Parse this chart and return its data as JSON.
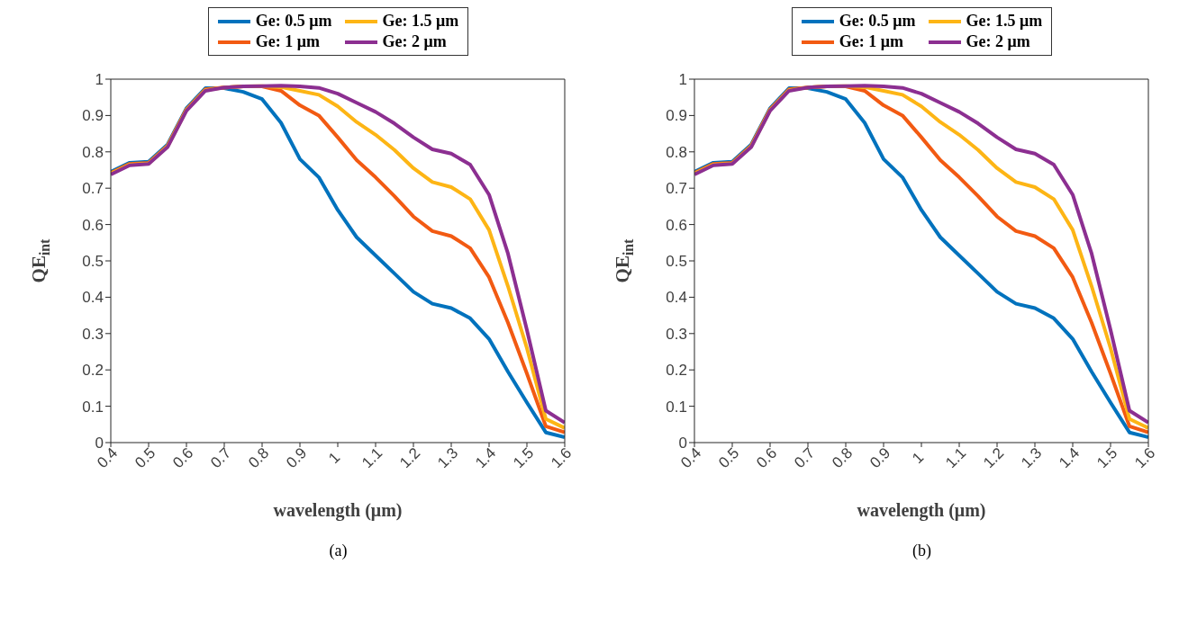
{
  "chart_data": [
    {
      "type": "line",
      "xlabel": "wavelength (μm)",
      "ylabel": "QE$_{int}$",
      "xlim": [
        0.4,
        1.6
      ],
      "ylim": [
        0,
        1
      ],
      "xticks": [
        0.4,
        0.5,
        0.6,
        0.7,
        0.8,
        0.9,
        1,
        1.1,
        1.2,
        1.3,
        1.4,
        1.5,
        1.6
      ],
      "yticks": [
        0,
        0.1,
        0.2,
        0.3,
        0.4,
        0.5,
        0.6,
        0.7,
        0.8,
        0.9,
        1
      ],
      "legend": "top",
      "marker": "none",
      "line_style": "solid",
      "annotations": [
        "(a)"
      ],
      "x": [
        0.4,
        0.45,
        0.5,
        0.55,
        0.6,
        0.65,
        0.7,
        0.75,
        0.8,
        0.85,
        0.9,
        0.95,
        1,
        1.05,
        1.1,
        1.15,
        1.2,
        1.25,
        1.3,
        1.35,
        1.4,
        1.45,
        1.5,
        1.55,
        1.6
      ],
      "series": [
        {
          "name": "Ge: 0.5 μm",
          "color": "#0072bd",
          "values": [
            0.745,
            0.77,
            0.773,
            0.82,
            0.92,
            0.975,
            0.975,
            0.965,
            0.945,
            0.88,
            0.78,
            0.73,
            0.64,
            0.565,
            0.515,
            0.465,
            0.415,
            0.382,
            0.37,
            0.342,
            0.285,
            0.195,
            0.11,
            0.028,
            0.015
          ]
        },
        {
          "name": "Ge: 1 μm",
          "color": "#f25a12",
          "values": [
            0.742,
            0.767,
            0.77,
            0.817,
            0.917,
            0.972,
            0.977,
            0.98,
            0.98,
            0.968,
            0.928,
            0.9,
            0.84,
            0.777,
            0.73,
            0.678,
            0.622,
            0.582,
            0.568,
            0.535,
            0.455,
            0.33,
            0.19,
            0.045,
            0.028
          ]
        },
        {
          "name": "Ge: 1.5 μm",
          "color": "#fdb515",
          "values": [
            0.74,
            0.765,
            0.768,
            0.815,
            0.915,
            0.97,
            0.977,
            0.98,
            0.981,
            0.978,
            0.968,
            0.957,
            0.925,
            0.882,
            0.847,
            0.805,
            0.755,
            0.717,
            0.703,
            0.67,
            0.585,
            0.43,
            0.26,
            0.065,
            0.04
          ]
        },
        {
          "name": "Ge: 2 μm",
          "color": "#8c2f91",
          "values": [
            0.738,
            0.763,
            0.767,
            0.813,
            0.913,
            0.968,
            0.977,
            0.98,
            0.981,
            0.982,
            0.98,
            0.976,
            0.96,
            0.935,
            0.91,
            0.878,
            0.84,
            0.807,
            0.795,
            0.765,
            0.682,
            0.52,
            0.31,
            0.088,
            0.055
          ]
        }
      ]
    },
    {
      "type": "line",
      "xlabel": "wavelength (μm)",
      "ylabel": "QE$_{int}$",
      "xlim": [
        0.4,
        1.6
      ],
      "ylim": [
        0,
        1
      ],
      "xticks": [
        0.4,
        0.5,
        0.6,
        0.7,
        0.8,
        0.9,
        1,
        1.1,
        1.2,
        1.3,
        1.4,
        1.5,
        1.6
      ],
      "yticks": [
        0,
        0.1,
        0.2,
        0.3,
        0.4,
        0.5,
        0.6,
        0.7,
        0.8,
        0.9,
        1
      ],
      "legend": "top",
      "marker": "none",
      "line_style": "solid",
      "annotations": [
        "(b)"
      ],
      "x": [
        0.4,
        0.45,
        0.5,
        0.55,
        0.6,
        0.65,
        0.7,
        0.75,
        0.8,
        0.85,
        0.9,
        0.95,
        1,
        1.05,
        1.1,
        1.15,
        1.2,
        1.25,
        1.3,
        1.35,
        1.4,
        1.45,
        1.5,
        1.55,
        1.6
      ],
      "series": [
        {
          "name": "Ge: 0.5 μm",
          "color": "#0072bd",
          "values": [
            0.745,
            0.77,
            0.773,
            0.82,
            0.92,
            0.975,
            0.975,
            0.965,
            0.945,
            0.88,
            0.78,
            0.73,
            0.64,
            0.565,
            0.515,
            0.465,
            0.415,
            0.382,
            0.37,
            0.342,
            0.285,
            0.195,
            0.11,
            0.028,
            0.015
          ]
        },
        {
          "name": "Ge: 1 μm",
          "color": "#f25a12",
          "values": [
            0.742,
            0.767,
            0.77,
            0.817,
            0.917,
            0.972,
            0.977,
            0.98,
            0.98,
            0.968,
            0.928,
            0.9,
            0.84,
            0.777,
            0.73,
            0.678,
            0.622,
            0.582,
            0.568,
            0.535,
            0.455,
            0.33,
            0.19,
            0.045,
            0.028
          ]
        },
        {
          "name": "Ge: 1.5 μm",
          "color": "#fdb515",
          "values": [
            0.74,
            0.765,
            0.768,
            0.815,
            0.915,
            0.97,
            0.977,
            0.98,
            0.981,
            0.978,
            0.968,
            0.957,
            0.925,
            0.882,
            0.847,
            0.805,
            0.755,
            0.717,
            0.703,
            0.67,
            0.585,
            0.43,
            0.26,
            0.065,
            0.04
          ]
        },
        {
          "name": "Ge: 2 μm",
          "color": "#8c2f91",
          "values": [
            0.738,
            0.763,
            0.767,
            0.813,
            0.913,
            0.968,
            0.977,
            0.98,
            0.981,
            0.982,
            0.98,
            0.976,
            0.96,
            0.935,
            0.91,
            0.878,
            0.84,
            0.807,
            0.795,
            0.765,
            0.682,
            0.52,
            0.31,
            0.088,
            0.055
          ]
        }
      ]
    }
  ]
}
